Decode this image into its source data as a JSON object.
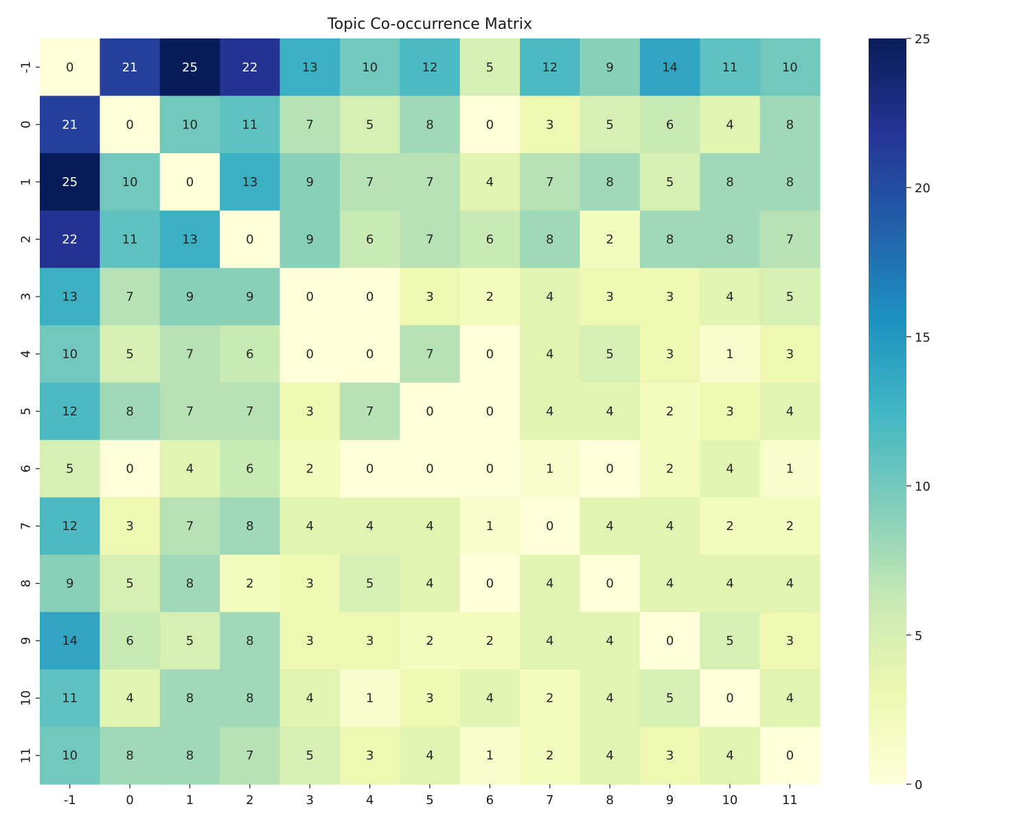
{
  "chart_data": {
    "type": "heatmap",
    "title": "Topic Co-occurrence Matrix",
    "xlabel": "",
    "ylabel": "",
    "x_categories": [
      "-1",
      "0",
      "1",
      "2",
      "3",
      "4",
      "5",
      "6",
      "7",
      "8",
      "9",
      "10",
      "11"
    ],
    "y_categories": [
      "-1",
      "0",
      "1",
      "2",
      "3",
      "4",
      "5",
      "6",
      "7",
      "8",
      "9",
      "10",
      "11"
    ],
    "values": [
      [
        0,
        21,
        25,
        22,
        13,
        10,
        12,
        5,
        12,
        9,
        14,
        11,
        10
      ],
      [
        21,
        0,
        10,
        11,
        7,
        5,
        8,
        0,
        3,
        5,
        6,
        4,
        8
      ],
      [
        25,
        10,
        0,
        13,
        9,
        7,
        7,
        4,
        7,
        8,
        5,
        8,
        8
      ],
      [
        22,
        11,
        13,
        0,
        9,
        6,
        7,
        6,
        8,
        2,
        8,
        8,
        7
      ],
      [
        13,
        7,
        9,
        9,
        0,
        0,
        3,
        2,
        4,
        3,
        3,
        4,
        5
      ],
      [
        10,
        5,
        7,
        6,
        0,
        0,
        7,
        0,
        4,
        5,
        3,
        1,
        3
      ],
      [
        12,
        8,
        7,
        7,
        3,
        7,
        0,
        0,
        4,
        4,
        2,
        3,
        4
      ],
      [
        5,
        0,
        4,
        6,
        2,
        0,
        0,
        0,
        1,
        0,
        2,
        4,
        1
      ],
      [
        12,
        3,
        7,
        8,
        4,
        4,
        4,
        1,
        0,
        4,
        4,
        2,
        2
      ],
      [
        9,
        5,
        8,
        2,
        3,
        5,
        4,
        0,
        4,
        0,
        4,
        4,
        4
      ],
      [
        14,
        6,
        5,
        8,
        3,
        3,
        2,
        2,
        4,
        4,
        0,
        5,
        3
      ],
      [
        11,
        4,
        8,
        8,
        4,
        1,
        3,
        4,
        2,
        4,
        5,
        0,
        4
      ],
      [
        10,
        8,
        8,
        7,
        5,
        3,
        4,
        1,
        2,
        4,
        3,
        4,
        0
      ]
    ],
    "colorbar": {
      "min": 0,
      "max": 25,
      "ticks": [
        0,
        5,
        10,
        15,
        20,
        25
      ],
      "colormap": "YlGnBu",
      "stops": [
        "#ffffd9",
        "#edf8b1",
        "#c7e9b4",
        "#7fcdbb",
        "#41b6c4",
        "#1d91c0",
        "#225ea8",
        "#253494",
        "#081d58"
      ]
    },
    "text_colors": {
      "light": "#ffffff",
      "dark": "#262626"
    }
  }
}
